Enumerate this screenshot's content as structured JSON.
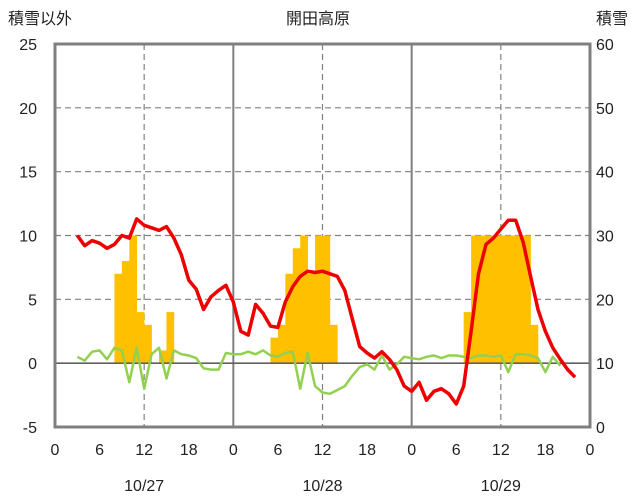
{
  "chart_data": {
    "type": "bar+line",
    "title": "開田高原",
    "left_axis_label": "積雪以外",
    "right_axis_label": "積雪",
    "y_left": {
      "min": -5,
      "max": 25,
      "ticks": [
        -5,
        0,
        5,
        10,
        15,
        20,
        25
      ]
    },
    "y_right": {
      "min": 0,
      "max": 60,
      "ticks": [
        0,
        10,
        20,
        30,
        40,
        50,
        60
      ]
    },
    "x_hours": {
      "min": 0,
      "max": 72
    },
    "x_tick_labels": [
      "0",
      "6",
      "12",
      "18",
      "0",
      "6",
      "12",
      "18",
      "0",
      "6",
      "12",
      "18",
      "0"
    ],
    "date_labels": [
      "10/27",
      "10/28",
      "10/29"
    ],
    "grid": "major lines at 12h (dashed) and day boundaries (solid)",
    "colors": {
      "temperature": "#ee0000",
      "bars": "#ffc000",
      "green": "#92d050",
      "grid": "#808080",
      "frame": "#7f7f7f"
    },
    "bars_left_units": [
      {
        "x": 8.5,
        "v": 7
      },
      {
        "x": 9.5,
        "v": 8
      },
      {
        "x": 10.5,
        "v": 10
      },
      {
        "x": 11.5,
        "v": 4
      },
      {
        "x": 12.5,
        "v": 3
      },
      {
        "x": 14.5,
        "v": 1
      },
      {
        "x": 15.5,
        "v": 4
      },
      {
        "x": 29.5,
        "v": 2
      },
      {
        "x": 30.5,
        "v": 3
      },
      {
        "x": 31.5,
        "v": 7
      },
      {
        "x": 32.5,
        "v": 9
      },
      {
        "x": 33.5,
        "v": 10
      },
      {
        "x": 34.5,
        "v": 7
      },
      {
        "x": 35.5,
        "v": 10
      },
      {
        "x": 36.5,
        "v": 10
      },
      {
        "x": 37.5,
        "v": 3
      },
      {
        "x": 55.5,
        "v": 4
      },
      {
        "x": 56.5,
        "v": 10
      },
      {
        "x": 57.5,
        "v": 10
      },
      {
        "x": 58.5,
        "v": 10
      },
      {
        "x": 59.5,
        "v": 10
      },
      {
        "x": 60.5,
        "v": 10
      },
      {
        "x": 61.5,
        "v": 10
      },
      {
        "x": 62.5,
        "v": 10
      },
      {
        "x": 63.5,
        "v": 10
      },
      {
        "x": 64.5,
        "v": 3
      }
    ],
    "temperature_left_units": [
      [
        3,
        10
      ],
      [
        4,
        9.2
      ],
      [
        5,
        9.6
      ],
      [
        6,
        9.4
      ],
      [
        7,
        9.0
      ],
      [
        8,
        9.3
      ],
      [
        9,
        10.0
      ],
      [
        10,
        9.8
      ],
      [
        11,
        11.3
      ],
      [
        12,
        10.8
      ],
      [
        13,
        10.6
      ],
      [
        14,
        10.4
      ],
      [
        15,
        10.7
      ],
      [
        16,
        9.8
      ],
      [
        17,
        8.5
      ],
      [
        18,
        6.5
      ],
      [
        19,
        5.8
      ],
      [
        20,
        4.2
      ],
      [
        21,
        5.2
      ],
      [
        22,
        5.7
      ],
      [
        23,
        6.1
      ],
      [
        24,
        4.8
      ],
      [
        25,
        2.5
      ],
      [
        26,
        2.2
      ],
      [
        27,
        4.6
      ],
      [
        28,
        3.9
      ],
      [
        29,
        2.9
      ],
      [
        30,
        2.8
      ],
      [
        31,
        4.8
      ],
      [
        32,
        6.0
      ],
      [
        33,
        6.8
      ],
      [
        34,
        7.2
      ],
      [
        35,
        7.1
      ],
      [
        36,
        7.2
      ],
      [
        37,
        7.0
      ],
      [
        38,
        6.8
      ],
      [
        39,
        5.7
      ],
      [
        40,
        3.5
      ],
      [
        41,
        1.3
      ],
      [
        42,
        0.8
      ],
      [
        43,
        0.4
      ],
      [
        44,
        0.9
      ],
      [
        45,
        0.3
      ],
      [
        46,
        -0.5
      ],
      [
        47,
        -1.8
      ],
      [
        48,
        -2.2
      ],
      [
        49,
        -1.5
      ],
      [
        50,
        -2.9
      ],
      [
        51,
        -2.2
      ],
      [
        52,
        -2.0
      ],
      [
        53,
        -2.4
      ],
      [
        54,
        -3.2
      ],
      [
        55,
        -1.8
      ],
      [
        56,
        2.5
      ],
      [
        57,
        7.0
      ],
      [
        58,
        9.3
      ],
      [
        59,
        9.8
      ],
      [
        60,
        10.5
      ],
      [
        61,
        11.2
      ],
      [
        62,
        11.2
      ],
      [
        63,
        9.5
      ],
      [
        64,
        6.8
      ],
      [
        65,
        4.2
      ],
      [
        66,
        2.5
      ],
      [
        67,
        1.2
      ],
      [
        68,
        0.3
      ],
      [
        69,
        -0.5
      ],
      [
        70,
        -1.1
      ]
    ],
    "green_left_units": [
      [
        3,
        0.5
      ],
      [
        4,
        0.2
      ],
      [
        5,
        0.9
      ],
      [
        6,
        1.0
      ],
      [
        7,
        0.3
      ],
      [
        8,
        1.2
      ],
      [
        9,
        1.0
      ],
      [
        10,
        -1.5
      ],
      [
        11,
        1.2
      ],
      [
        12,
        -2.0
      ],
      [
        13,
        0.7
      ],
      [
        14,
        1.2
      ],
      [
        15,
        -1.2
      ],
      [
        16,
        1.0
      ],
      [
        17,
        0.7
      ],
      [
        18,
        0.6
      ],
      [
        19,
        0.4
      ],
      [
        20,
        -0.4
      ],
      [
        21,
        -0.5
      ],
      [
        22,
        -0.5
      ],
      [
        23,
        0.8
      ],
      [
        24,
        0.7
      ],
      [
        25,
        0.7
      ],
      [
        26,
        0.9
      ],
      [
        27,
        0.7
      ],
      [
        28,
        1.0
      ],
      [
        29,
        0.6
      ],
      [
        30,
        0.5
      ],
      [
        31,
        0.8
      ],
      [
        32,
        0.9
      ],
      [
        33,
        -2.0
      ],
      [
        34,
        0.8
      ],
      [
        35,
        -1.8
      ],
      [
        36,
        -2.3
      ],
      [
        37,
        -2.4
      ],
      [
        38,
        -2.1
      ],
      [
        39,
        -1.8
      ],
      [
        40,
        -1.0
      ],
      [
        41,
        -0.3
      ],
      [
        42,
        -0.1
      ],
      [
        43,
        -0.5
      ],
      [
        44,
        0.6
      ],
      [
        45,
        -0.5
      ],
      [
        46,
        -0.1
      ],
      [
        47,
        0.5
      ],
      [
        48,
        0.4
      ],
      [
        49,
        0.3
      ],
      [
        50,
        0.5
      ],
      [
        51,
        0.6
      ],
      [
        52,
        0.4
      ],
      [
        53,
        0.6
      ],
      [
        54,
        0.6
      ],
      [
        55,
        0.5
      ],
      [
        56,
        0.4
      ],
      [
        57,
        0.6
      ],
      [
        58,
        0.6
      ],
      [
        59,
        0.5
      ],
      [
        60,
        0.6
      ],
      [
        61,
        -0.7
      ],
      [
        62,
        0.7
      ],
      [
        63,
        0.7
      ],
      [
        64,
        0.6
      ],
      [
        65,
        0.4
      ],
      [
        66,
        -0.7
      ],
      [
        67,
        0.5
      ],
      [
        68,
        -0.2
      ]
    ]
  }
}
